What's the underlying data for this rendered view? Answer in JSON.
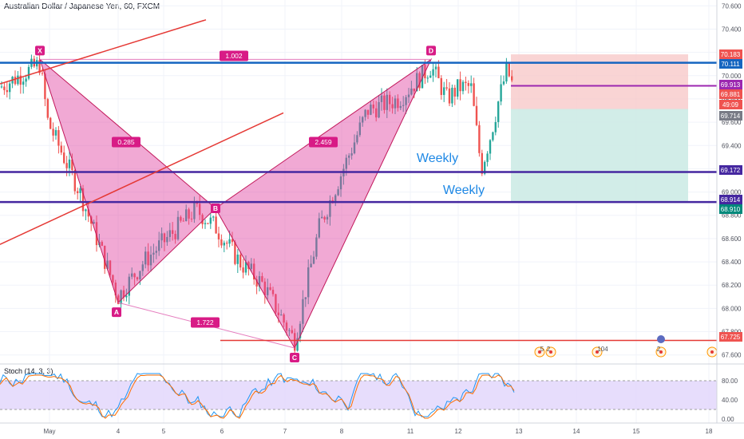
{
  "header": {
    "title": "Australian Dollar / Japanese Yen, 60, FXCM"
  },
  "indicator": {
    "label": "Stoch (14, 3, 3)"
  },
  "colors": {
    "pattern_fill": "#e040a0",
    "candle_up": "#26a69a",
    "candle_down": "#ef5350",
    "blue_line": "#1565c0",
    "purple_line": "#4527a0",
    "red_line": "#e53935",
    "magenta_line": "#9c27b0",
    "weekly_text": "#1e88e5"
  },
  "chart_data": {
    "type": "candlestick",
    "symbol": "AUDJPY",
    "timeframe": "60",
    "y_range": [
      67.55,
      70.65
    ],
    "price_axis_ticks": [
      "70.600",
      "70.400",
      "70.200",
      "70.000",
      "69.800",
      "69.600",
      "69.400",
      "69.200",
      "69.000",
      "68.800",
      "68.600",
      "68.400",
      "68.200",
      "68.000",
      "67.800",
      "67.600"
    ],
    "date_axis_ticks": [
      "May",
      "4",
      "5",
      "6",
      "7",
      "8",
      "11",
      "12",
      "13",
      "14",
      "15",
      "18"
    ],
    "stoch_axis_ticks": [
      "80.00",
      "40.00",
      "0.00"
    ],
    "harmonic_points": [
      {
        "label": "X",
        "date": "May 1",
        "price": 70.14
      },
      {
        "label": "A",
        "date": "May 4",
        "price": 68.05
      },
      {
        "label": "B",
        "date": "May 6",
        "price": 68.86
      },
      {
        "label": "C",
        "date": "May 7",
        "price": 67.66
      },
      {
        "label": "D",
        "date": "May 11",
        "price": 70.14
      }
    ],
    "ratios": [
      "1.002",
      "0.285",
      "2.459",
      "1.722"
    ],
    "horizontal_levels": [
      {
        "price": 70.111,
        "tag": "70.111",
        "kind": "blue"
      },
      {
        "price": 69.172,
        "tag": "69.172",
        "kind": "purple"
      },
      {
        "price": 68.914,
        "tag": "68.914",
        "kind": "purple"
      },
      {
        "price": 67.725,
        "tag": "67.725",
        "kind": "red"
      },
      {
        "price": 69.913,
        "tag": "69.913",
        "kind": "magenta"
      }
    ],
    "right_tags": [
      {
        "price": 70.183,
        "text": "70.183",
        "kind": "red"
      },
      {
        "price": 70.111,
        "text": "70.111",
        "kind": "blue"
      },
      {
        "price": 69.913,
        "text": "69.913",
        "kind": "magenta"
      },
      {
        "price": 69.881,
        "text": "69.881",
        "kind": "red"
      },
      {
        "price": 69.82,
        "text": "49:09",
        "kind": "red"
      },
      {
        "price": 69.714,
        "text": "69.714",
        "kind": "gray"
      },
      {
        "price": 69.172,
        "text": "69.172",
        "kind": "purple"
      },
      {
        "price": 68.914,
        "text": "68.914",
        "kind": "purple"
      },
      {
        "price": 68.91,
        "text": "68.910",
        "kind": "teal"
      },
      {
        "price": 67.725,
        "text": "67.725",
        "kind": "red"
      }
    ],
    "annotations": [
      "Weekly",
      "Weekly"
    ],
    "position": {
      "entry": 69.913,
      "stop_top": 70.183,
      "target": 68.914
    },
    "event_markers": [
      "5",
      "2",
      "104",
      "2"
    ],
    "stochastic": {
      "k": 14,
      "d": 3,
      "smooth": 3,
      "upper": 80,
      "lower": 20
    }
  }
}
